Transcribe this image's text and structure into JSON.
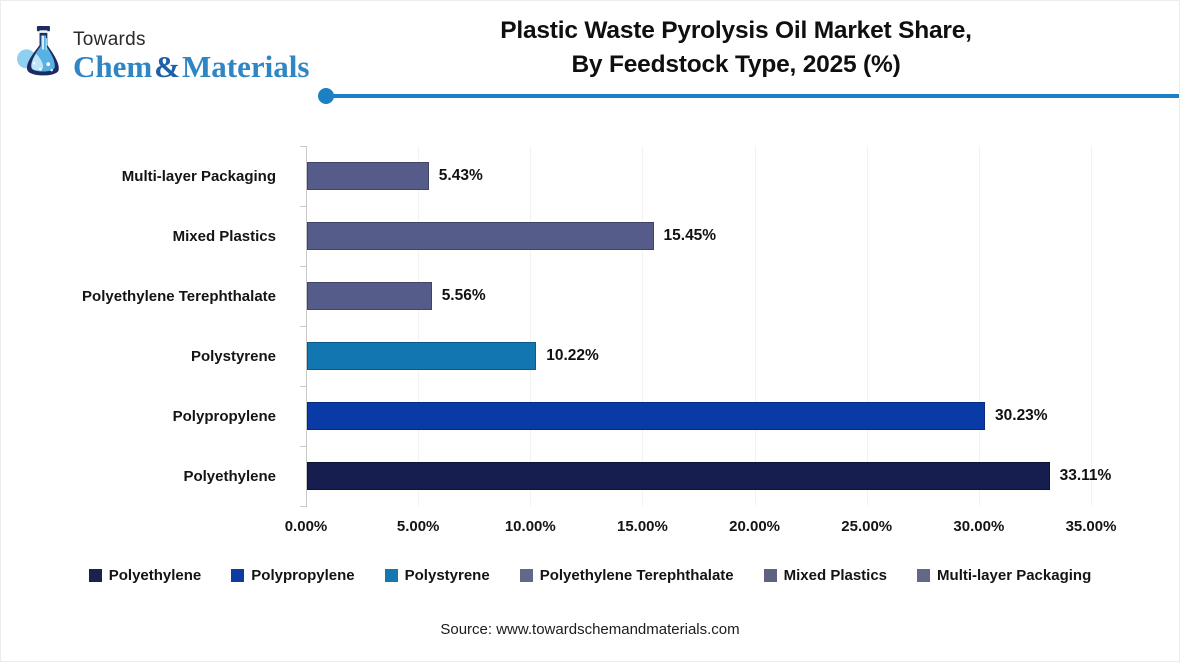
{
  "logo": {
    "towards": "Towards",
    "brand_chem": "Chem",
    "brand_amp": "&",
    "brand_materials": "Materials",
    "flask_icon": "chemistry-flask-icon",
    "brand_color": "#2e86c5"
  },
  "header": {
    "title_line1": "Plastic Waste Pyrolysis Oil Market Share,",
    "title_line2": "By Feedstock Type, 2025 (%)",
    "accent_line_color": "#1b80c4"
  },
  "chart_data": {
    "type": "bar",
    "orientation": "horizontal",
    "title": "Plastic Waste Pyrolysis Oil Market Share, By Feedstock Type, 2025 (%)",
    "categories": [
      "Multi-layer Packaging",
      "Mixed Plastics",
      "Polyethylene Terephthalate",
      "Polystyrene",
      "Polypropylene",
      "Polyethylene"
    ],
    "values": [
      5.43,
      15.45,
      5.56,
      10.22,
      30.23,
      33.11
    ],
    "value_labels": [
      "5.43%",
      "15.45%",
      "5.56%",
      "10.22%",
      "30.23%",
      "33.11%"
    ],
    "bar_colors": [
      "#565c8a",
      "#565c8a",
      "#565c8a",
      "#1277b0",
      "#0a3aa6",
      "#161e4f"
    ],
    "bar_border_colors": [
      "#3f4468",
      "#3f4468",
      "#3f4468",
      "#0c5a8a",
      "#072a7e",
      "#0d1333"
    ],
    "xlim": [
      0,
      35
    ],
    "x_tick_labels": [
      "0.00%",
      "5.00%",
      "10.00%",
      "15.00%",
      "20.00%",
      "25.00%",
      "30.00%",
      "35.00%"
    ],
    "grid": "faint vertical gridlines at each 5% tick",
    "legend_position": "bottom"
  },
  "legend": [
    {
      "label": "Polyethylene",
      "color": "#1b2150"
    },
    {
      "label": "Polypropylene",
      "color": "#0d3ba0"
    },
    {
      "label": "Polystyrene",
      "color": "#1478ad"
    },
    {
      "label": "Polyethylene Terephthalate",
      "color": "#63678a"
    },
    {
      "label": "Mixed Plastics",
      "color": "#5e6280"
    },
    {
      "label": "Multi-layer Packaging",
      "color": "#636887"
    }
  ],
  "footer": {
    "source": "Source: www.towardschemandmaterials.com"
  }
}
